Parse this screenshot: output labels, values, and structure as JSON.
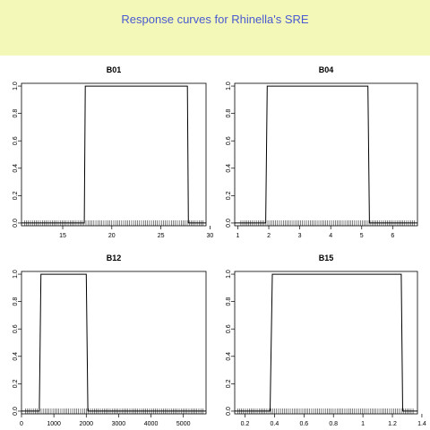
{
  "header": {
    "title": "Response curves for Rhinella's SRE",
    "background": "#f3f7b7",
    "title_color": "#4a5bd1"
  },
  "chart_data": [
    {
      "type": "line",
      "title": "B01",
      "xlabel": "",
      "ylabel": "",
      "xlim": [
        10.8,
        29.6
      ],
      "ylim": [
        -0.02,
        1.02
      ],
      "xticks": [
        15,
        20,
        25,
        30
      ],
      "yticks": [
        0.0,
        0.2,
        0.4,
        0.6,
        0.8,
        1.0
      ],
      "ytick_labels": [
        "0.0",
        "0.2",
        "0.4",
        "0.6",
        "0.8",
        "1.0"
      ],
      "x": [
        10.8,
        17.2,
        17.3,
        27.7,
        27.8,
        29.6
      ],
      "y": [
        0,
        0,
        1,
        1,
        0,
        0
      ],
      "rug_range": [
        11.1,
        29.3
      ]
    },
    {
      "type": "line",
      "title": "B04",
      "xlabel": "",
      "ylabel": "",
      "xlim": [
        0.9,
        6.8
      ],
      "ylim": [
        -0.02,
        1.02
      ],
      "xticks": [
        1,
        2,
        3,
        4,
        5,
        6
      ],
      "yticks": [
        0.0,
        0.2,
        0.4,
        0.6,
        0.8,
        1.0
      ],
      "ytick_labels": [
        "0.0",
        "0.2",
        "0.4",
        "0.6",
        "0.8",
        "1.0"
      ],
      "x": [
        0.9,
        1.9,
        1.95,
        5.2,
        5.25,
        6.8
      ],
      "y": [
        0,
        0,
        1,
        1,
        0,
        0
      ],
      "rug_range": [
        1.1,
        6.7
      ]
    },
    {
      "type": "line",
      "title": "B12",
      "xlabel": "",
      "ylabel": "",
      "xlim": [
        0,
        5700
      ],
      "ylim": [
        -0.02,
        1.02
      ],
      "xticks": [
        0,
        1000,
        2000,
        3000,
        4000,
        5000
      ],
      "yticks": [
        0.0,
        0.2,
        0.4,
        0.6,
        0.8,
        1.0
      ],
      "ytick_labels": [
        "0.0",
        "0.2",
        "0.4",
        "0.6",
        "0.8",
        "1.0"
      ],
      "x": [
        0,
        550,
        600,
        2000,
        2050,
        5700
      ],
      "y": [
        0,
        0,
        1,
        1,
        0,
        0
      ],
      "rug_range": [
        120,
        5600
      ]
    },
    {
      "type": "line",
      "title": "B15",
      "xlabel": "",
      "ylabel": "",
      "xlim": [
        0.13,
        1.37
      ],
      "ylim": [
        -0.02,
        1.02
      ],
      "xticks": [
        0.2,
        0.4,
        0.6,
        0.8,
        1.0,
        1.2,
        1.4
      ],
      "yticks": [
        0.0,
        0.2,
        0.4,
        0.6,
        0.8,
        1.0
      ],
      "ytick_labels": [
        "0.0",
        "0.2",
        "0.4",
        "0.6",
        "0.8",
        "1.0"
      ],
      "x": [
        0.13,
        0.37,
        0.385,
        1.26,
        1.27,
        1.37
      ],
      "y": [
        0,
        0,
        1,
        1,
        0,
        0
      ],
      "rug_range": [
        0.15,
        1.34
      ]
    }
  ]
}
